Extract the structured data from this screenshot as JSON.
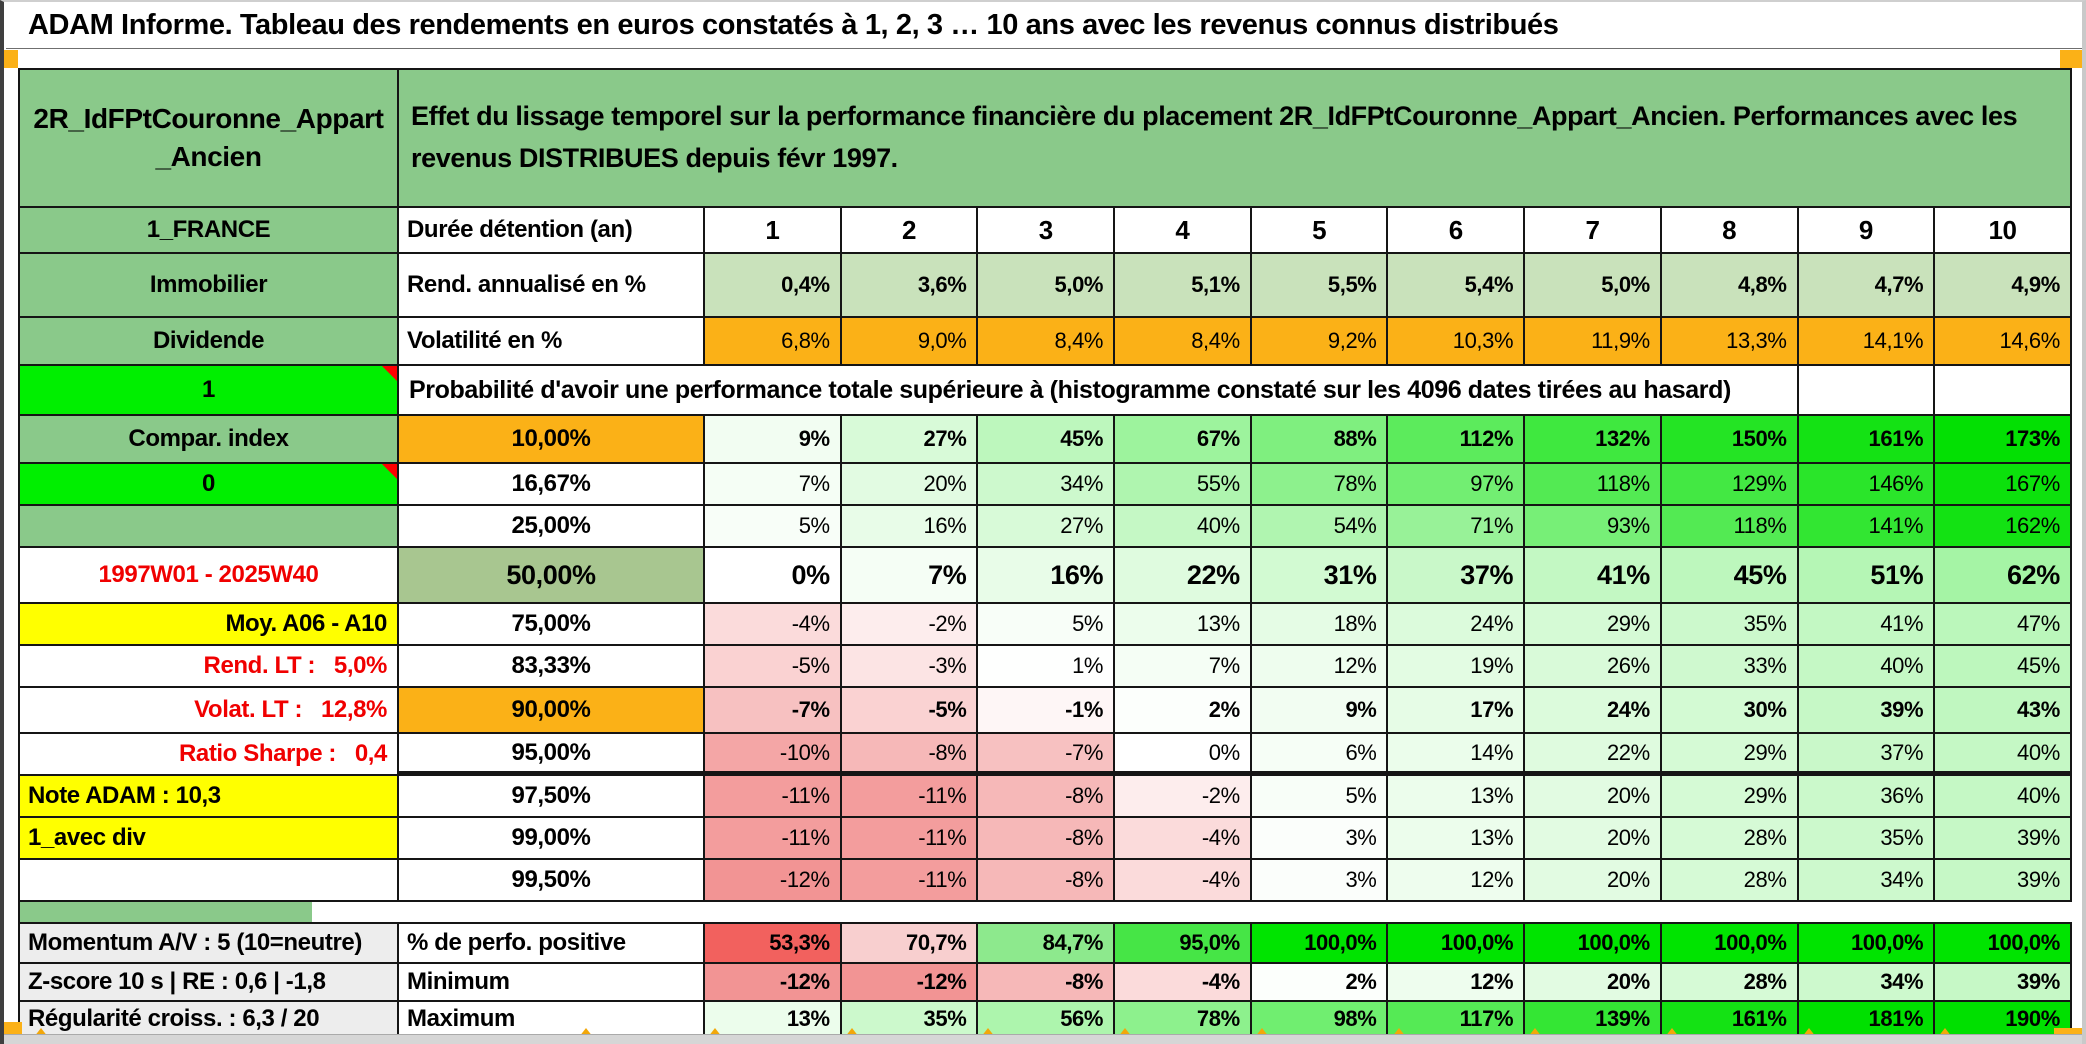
{
  "title": "ADAM Informe. Tableau des rendements en euros constatés à 1, 2, 3 … 10 ans avec les revenus connus distribués",
  "panel": {
    "name": "2R_IdFPtCouronne_Appart_Ancien",
    "description": "Effet du lissage temporel sur la performance financière du placement 2R_IdFPtCouronne_Appart_Ancien. Performances avec les revenus DISTRIBUES depuis févr 1997."
  },
  "colors": {
    "header_green": "#8AC98A",
    "bright_green": "#00EF00",
    "orange": "#FBB117",
    "olive_green": "#A8C690",
    "yellow": "#FFFF00",
    "gray_label": "#EDEDED",
    "rend_green": "#C9E2BB",
    "grad_positive_max": "#00E000",
    "grad_negative_max": "#F29494",
    "red_text": "#F00000",
    "perfo_scale": [
      "#F2615E",
      "#F8CFCF",
      "#8DE98D",
      "#46E546",
      "#00E400"
    ]
  },
  "table": {
    "rows": [
      {
        "id": "panel",
        "type": "panel"
      },
      {
        "id": "duree",
        "type": "head",
        "left": {
          "text": "1_FRANCE",
          "bg": "green",
          "align": "c"
        },
        "label": {
          "text": "Durée détention (an)",
          "bg": "white",
          "align": "l"
        },
        "cells": {
          "values": [
            "1",
            "2",
            "3",
            "4",
            "5",
            "6",
            "7",
            "8",
            "9",
            "10"
          ]
        }
      },
      {
        "id": "rendement",
        "type": "fixed",
        "cellbg": "rend",
        "cellbold": true,
        "left": {
          "text": "Immobilier",
          "bg": "green",
          "align": "c"
        },
        "label": {
          "text": "Rend. annualisé en %",
          "bg": "white",
          "align": "l"
        },
        "cells": {
          "values": [
            "0,4%",
            "3,6%",
            "5,0%",
            "5,1%",
            "5,5%",
            "5,4%",
            "5,0%",
            "4,8%",
            "4,7%",
            "4,9%"
          ]
        }
      },
      {
        "id": "volatilite",
        "type": "fixed",
        "cellbg": "orange",
        "cellbold": false,
        "left": {
          "text": "Dividende",
          "bg": "green",
          "align": "c"
        },
        "label": {
          "text": "Volatilité en %",
          "bg": "white",
          "align": "l"
        },
        "cells": {
          "values": [
            "6,8%",
            "9,0%",
            "8,4%",
            "8,4%",
            "9,2%",
            "10,3%",
            "11,9%",
            "13,3%",
            "14,1%",
            "14,6%"
          ]
        }
      },
      {
        "id": "proba-header",
        "type": "span",
        "left": {
          "text": "1",
          "bg": "bright",
          "align": "c",
          "marker": true
        },
        "span_text": "Probabilité d'avoir une performance totale supérieure à (histogramme constaté sur les 4096 dates tirées au hasard)",
        "cells": {
          "values": []
        }
      },
      {
        "id": "p10",
        "type": "grad",
        "cellbold": true,
        "left": {
          "text": "Compar. index",
          "bg": "green",
          "align": "c"
        },
        "label": {
          "text": "10,00%",
          "bg": "orange",
          "align": "c"
        },
        "cells": {
          "values": [
            "9%",
            "27%",
            "45%",
            "67%",
            "88%",
            "112%",
            "132%",
            "150%",
            "161%",
            "173%"
          ]
        }
      },
      {
        "id": "p16-67",
        "type": "grad",
        "left": {
          "text": "0",
          "bg": "bright",
          "align": "c",
          "marker": true
        },
        "label": {
          "text": "16,67%",
          "bg": "white",
          "align": "c"
        },
        "cells": {
          "values": [
            "7%",
            "20%",
            "34%",
            "55%",
            "78%",
            "97%",
            "118%",
            "129%",
            "146%",
            "167%"
          ]
        }
      },
      {
        "id": "p25",
        "type": "grad",
        "left": {
          "text": "",
          "bg": "green",
          "align": "c"
        },
        "label": {
          "text": "25,00%",
          "bg": "white",
          "align": "c"
        },
        "cells": {
          "values": [
            "5%",
            "16%",
            "27%",
            "40%",
            "54%",
            "71%",
            "93%",
            "118%",
            "141%",
            "162%"
          ]
        }
      },
      {
        "id": "p50",
        "type": "grad",
        "cellbold": true,
        "big": true,
        "left": {
          "text": "1997W01 - 2025W40",
          "bg": "white",
          "color": "red",
          "align": "c"
        },
        "label": {
          "text": "50,00%",
          "bg": "olive",
          "align": "c",
          "big": true
        },
        "cells": {
          "values": [
            "0%",
            "7%",
            "16%",
            "22%",
            "31%",
            "37%",
            "41%",
            "45%",
            "51%",
            "62%"
          ]
        }
      },
      {
        "id": "p75",
        "type": "grad",
        "left": {
          "text": "Moy. A06 - A10",
          "bg": "yellow",
          "align": "r"
        },
        "label": {
          "text": "75,00%",
          "bg": "white",
          "align": "c"
        },
        "cells": {
          "values": [
            "-4%",
            "-2%",
            "5%",
            "13%",
            "18%",
            "24%",
            "29%",
            "35%",
            "41%",
            "47%"
          ]
        }
      },
      {
        "id": "p83-33",
        "type": "grad",
        "left": {
          "text": "Rend. LT :   5,0%",
          "bg": "white",
          "color": "red",
          "align": "r"
        },
        "label": {
          "text": "83,33%",
          "bg": "white",
          "align": "c"
        },
        "cells": {
          "values": [
            "-5%",
            "-3%",
            "1%",
            "7%",
            "12%",
            "19%",
            "26%",
            "33%",
            "40%",
            "45%"
          ]
        }
      },
      {
        "id": "p90",
        "type": "grad",
        "cellbold": true,
        "left": {
          "text": "Volat. LT :   12,8%",
          "bg": "white",
          "color": "red",
          "align": "r"
        },
        "label": {
          "text": "90,00%",
          "bg": "orange",
          "align": "c"
        },
        "cells": {
          "values": [
            "-7%",
            "-5%",
            "-1%",
            "2%",
            "9%",
            "17%",
            "24%",
            "30%",
            "39%",
            "43%"
          ]
        }
      },
      {
        "id": "p95",
        "type": "grad",
        "left": {
          "text": "Ratio Sharpe :   0,4",
          "bg": "white",
          "color": "red",
          "align": "r"
        },
        "label": {
          "text": "95,00%",
          "bg": "white",
          "align": "c"
        },
        "cells": {
          "values": [
            "-10%",
            "-8%",
            "-7%",
            "0%",
            "6%",
            "14%",
            "22%",
            "29%",
            "37%",
            "40%"
          ]
        }
      },
      {
        "id": "p97-50",
        "type": "grad",
        "left": {
          "text": "Note ADAM : 10,3",
          "bg": "yellow",
          "align": "l"
        },
        "label": {
          "text": "97,50%",
          "bg": "white",
          "align": "c"
        },
        "cells": {
          "values": [
            "-11%",
            "-11%",
            "-8%",
            "-2%",
            "5%",
            "13%",
            "20%",
            "29%",
            "36%",
            "40%"
          ]
        }
      },
      {
        "id": "p99",
        "type": "grad",
        "left": {
          "text": "1_avec div",
          "bg": "yellow",
          "align": "l"
        },
        "label": {
          "text": "99,00%",
          "bg": "white",
          "align": "c"
        },
        "cells": {
          "values": [
            "-11%",
            "-11%",
            "-8%",
            "-4%",
            "3%",
            "13%",
            "20%",
            "28%",
            "35%",
            "39%"
          ]
        }
      },
      {
        "id": "p99-50",
        "type": "grad",
        "left": {
          "text": "",
          "bg": "white",
          "align": "c"
        },
        "label": {
          "text": "99,50%",
          "bg": "white",
          "align": "c"
        },
        "cells": {
          "values": [
            "-12%",
            "-11%",
            "-8%",
            "-4%",
            "3%",
            "12%",
            "20%",
            "28%",
            "34%",
            "39%"
          ]
        }
      },
      {
        "id": "spacer",
        "type": "spacer",
        "cells": {
          "values": []
        }
      },
      {
        "id": "perfo",
        "type": "perfo",
        "cellbold": true,
        "left": {
          "text": "Momentum A/V : 5 (10=neutre)",
          "bg": "gray",
          "align": "l"
        },
        "label": {
          "text": "% de perfo. positive",
          "bg": "white",
          "align": "l"
        },
        "cells": {
          "values": [
            "53,3%",
            "70,7%",
            "84,7%",
            "95,0%",
            "100,0%",
            "100,0%",
            "100,0%",
            "100,0%",
            "100,0%",
            "100,0%"
          ]
        }
      },
      {
        "id": "minimum",
        "type": "grad",
        "cellbold": true,
        "left": {
          "text": "Z-score 10 s | RE : 0,6 | -1,8",
          "bg": "gray",
          "align": "l"
        },
        "label": {
          "text": "Minimum",
          "bg": "white",
          "align": "l"
        },
        "cells": {
          "values": [
            "-12%",
            "-12%",
            "-8%",
            "-4%",
            "2%",
            "12%",
            "20%",
            "28%",
            "34%",
            "39%"
          ]
        }
      },
      {
        "id": "maximum",
        "type": "grad",
        "cellbold": true,
        "left": {
          "text": "Régularité croiss. : 6,3 / 20",
          "bg": "gray",
          "align": "l"
        },
        "label": {
          "text": "Maximum",
          "bg": "white",
          "align": "l"
        },
        "cells": {
          "values": [
            "13%",
            "35%",
            "56%",
            "78%",
            "98%",
            "117%",
            "139%",
            "161%",
            "181%",
            "190%"
          ]
        }
      }
    ]
  }
}
